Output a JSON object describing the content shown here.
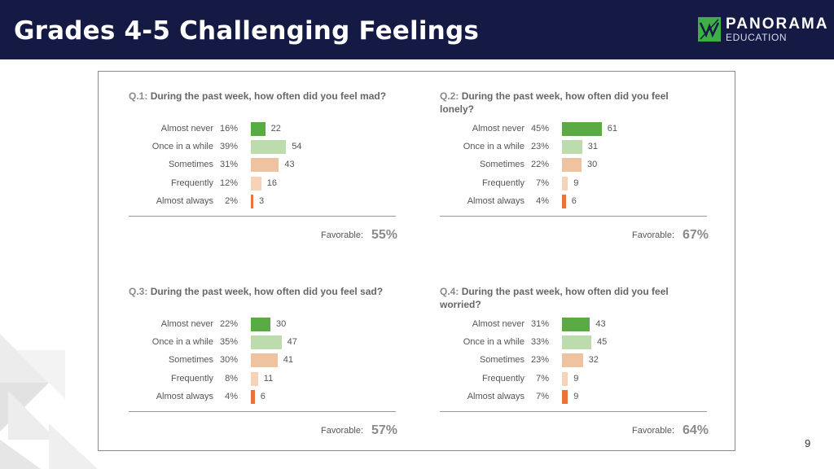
{
  "header": {
    "title": "Grades 4-5 Challenging Feelings"
  },
  "logo": {
    "name": "PANORAMA",
    "sub": "EDUCATION"
  },
  "colors": {
    "header_bg": "#151a45",
    "bar_colors": [
      "#5aaa45",
      "#bcdcad",
      "#f0c3a0",
      "#f5d2b8",
      "#e9733a"
    ]
  },
  "page_number": "9",
  "chart_data": [
    {
      "type": "bar",
      "orientation": "horizontal",
      "question_number": "Q.1:",
      "title": "During the past week, how often did you feel mad?",
      "categories": [
        "Almost never",
        "Once in a while",
        "Sometimes",
        "Frequently",
        "Almost always"
      ],
      "percents": [
        "16%",
        "39%",
        "31%",
        "12%",
        "2%"
      ],
      "values": [
        22,
        54,
        43,
        16,
        3
      ],
      "favorable_label": "Favorable:",
      "favorable": "55%"
    },
    {
      "type": "bar",
      "orientation": "horizontal",
      "question_number": "Q.2:",
      "title": "During the past week, how often did you feel lonely?",
      "categories": [
        "Almost never",
        "Once in a while",
        "Sometimes",
        "Frequently",
        "Almost always"
      ],
      "percents": [
        "45%",
        "23%",
        "22%",
        "7%",
        "4%"
      ],
      "values": [
        61,
        31,
        30,
        9,
        6
      ],
      "favorable_label": "Favorable:",
      "favorable": "67%"
    },
    {
      "type": "bar",
      "orientation": "horizontal",
      "question_number": "Q.3:",
      "title": "During the past week, how often did you feel sad?",
      "categories": [
        "Almost never",
        "Once in a while",
        "Sometimes",
        "Frequently",
        "Almost always"
      ],
      "percents": [
        "22%",
        "35%",
        "30%",
        "8%",
        "4%"
      ],
      "values": [
        30,
        47,
        41,
        11,
        6
      ],
      "favorable_label": "Favorable:",
      "favorable": "57%"
    },
    {
      "type": "bar",
      "orientation": "horizontal",
      "question_number": "Q.4:",
      "title": "During the past week, how often did you feel worried?",
      "categories": [
        "Almost never",
        "Once in a while",
        "Sometimes",
        "Frequently",
        "Almost always"
      ],
      "percents": [
        "31%",
        "33%",
        "23%",
        "7%",
        "7%"
      ],
      "values": [
        43,
        45,
        32,
        9,
        9
      ],
      "favorable_label": "Favorable:",
      "favorable": "64%"
    }
  ]
}
